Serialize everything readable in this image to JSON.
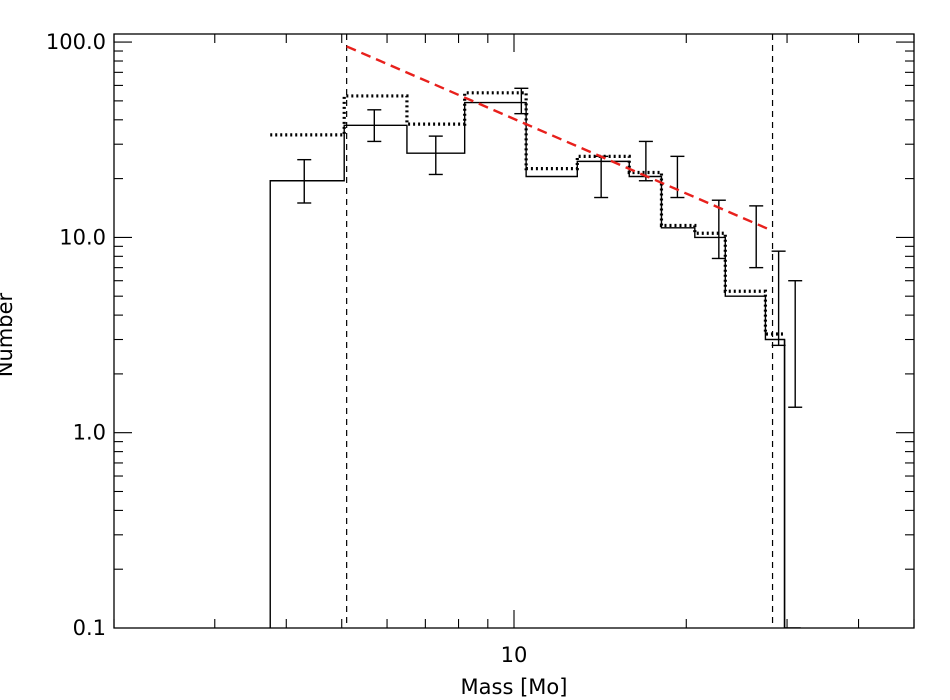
{
  "chart_data": {
    "type": "bar",
    "xlabel": "Mass [Mo]",
    "ylabel": "Number",
    "xscale": "log",
    "yscale": "log",
    "xlim": [
      2.0,
      50.0
    ],
    "ylim": [
      0.1,
      110
    ],
    "yticks": [
      {
        "value": 0.1,
        "label": "0.1"
      },
      {
        "value": 1,
        "label": "1.0"
      },
      {
        "value": 10,
        "label": "10.0"
      },
      {
        "value": 100,
        "label": "100.0"
      }
    ],
    "xticks": [
      {
        "value": 10,
        "label": "10"
      }
    ],
    "histogram_solid": {
      "edges": [
        3.75,
        5.05,
        6.5,
        8.2,
        10.5,
        12.9,
        15.9,
        18.1,
        20.7,
        23.4,
        27.5,
        29.7,
        31.7
      ],
      "values": [
        19.5,
        37.5,
        27,
        49,
        20.5,
        24.5,
        20.5,
        11.2,
        10.0,
        5.0,
        3.0,
        0
      ]
    },
    "histogram_dotted": {
      "edges": [
        3.75,
        5.05,
        6.5,
        8.2,
        10.5,
        12.9,
        15.9,
        18.1,
        20.7,
        23.4,
        27.5,
        29.7
      ],
      "values": [
        33.5,
        53,
        38,
        55,
        22.5,
        26,
        21.5,
        11.5,
        10.5,
        5.3,
        3.2
      ]
    },
    "error_bars": [
      {
        "x": 4.3,
        "low": 15,
        "high": 25
      },
      {
        "x": 5.7,
        "low": 31,
        "high": 45
      },
      {
        "x": 7.3,
        "low": 21,
        "high": 33
      },
      {
        "x": 10.3,
        "low": 43,
        "high": 58
      },
      {
        "x": 14.2,
        "low": 16,
        "high": 26
      },
      {
        "x": 17.0,
        "low": 19.5,
        "high": 31
      },
      {
        "x": 19.3,
        "low": 16,
        "high": 26
      },
      {
        "x": 22.8,
        "low": 7.8,
        "high": 15.5
      },
      {
        "x": 26.5,
        "low": 7,
        "high": 14.5
      },
      {
        "x": 29.0,
        "low": 2.8,
        "high": 8.5
      },
      {
        "x": 31.0,
        "low": 1.35,
        "high": 6
      }
    ],
    "vertical_lines": [
      5.1,
      28.3
    ],
    "fit_line": {
      "x": [
        5.1,
        28.3
      ],
      "y": [
        95,
        10.8
      ],
      "color": "#e8201c",
      "style": "dashed"
    },
    "grid": false
  }
}
